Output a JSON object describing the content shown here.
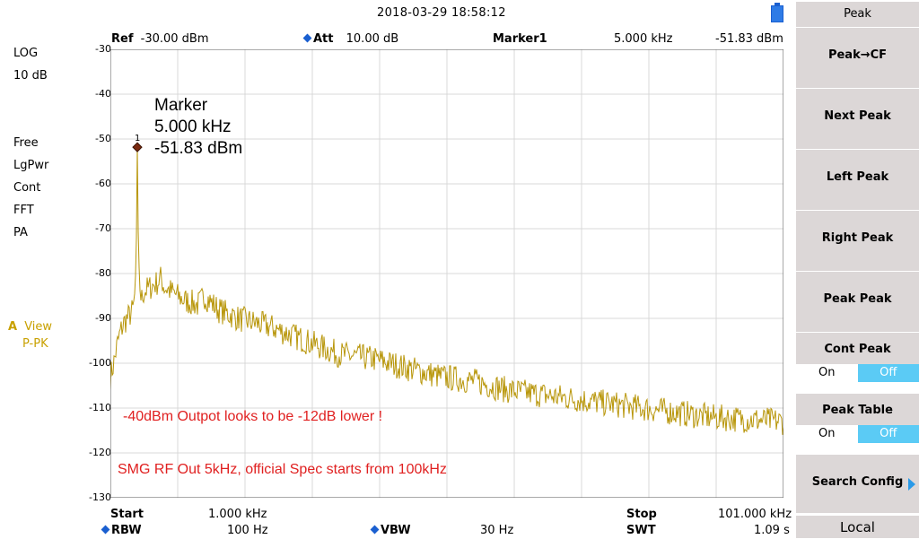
{
  "header": {
    "datetime": "2018-03-29   18:58:12"
  },
  "left_panel": {
    "scale": "LOG",
    "div": "10 dB",
    "free": "Free",
    "lgpwr": "LgPwr",
    "cont": "Cont",
    "fft": "FFT",
    "pa": "PA",
    "trace_letter": "A",
    "trace_view": "View",
    "trace_mode": "P-PK"
  },
  "top_info": {
    "ref_label": "Ref",
    "ref_value": "-30.00 dBm",
    "att_label": "Att",
    "att_value": "10.00 dB",
    "marker_label": "Marker1",
    "marker_freq": "5.000 kHz",
    "marker_level": "-51.83 dBm"
  },
  "y_ticks": [
    "-30",
    "-40",
    "-50",
    "-60",
    "-70",
    "-80",
    "-90",
    "-100",
    "-110",
    "-120",
    "-130"
  ],
  "marker_box": {
    "title": "Marker",
    "freq": "5.000 kHz",
    "level": "-51.83 dBm",
    "number": "1"
  },
  "annotations": {
    "line1": "-40dBm Outpot looks to be -12dB lower !",
    "line2": "SMG RF Out 5kHz, official Spec starts from 100kHz"
  },
  "footer": {
    "start_label": "Start",
    "start_value": "1.000 kHz",
    "stop_label": "Stop",
    "stop_value": "101.000 kHz",
    "rbw_label": "RBW",
    "rbw_value": "100 Hz",
    "vbw_label": "VBW",
    "vbw_value": "30 Hz",
    "swt_label": "SWT",
    "swt_value": "1.09 s"
  },
  "sidebar": {
    "title": "Peak",
    "peak_cf": "Peak→CF",
    "next_peak": "Next Peak",
    "left_peak": "Left Peak",
    "right_peak": "Right Peak",
    "peak_peak": "Peak Peak",
    "cont_peak": "Cont Peak",
    "cont_peak_on": "On",
    "cont_peak_off": "Off",
    "peak_table": "Peak Table",
    "peak_table_on": "On",
    "peak_table_off": "Off",
    "search_config": "Search Config",
    "local": "Local"
  },
  "colors": {
    "trace": "#b8960a",
    "grid": "#d8d8d8",
    "annotation": "#e02020",
    "toggle_active": "#5bcbf5",
    "softkey": "#dcd7d7"
  },
  "chart_data": {
    "type": "line",
    "x_unit": "kHz",
    "y_unit": "dBm",
    "xlim": [
      1.0,
      101.0
    ],
    "ylim": [
      -130,
      -30
    ],
    "marker": {
      "x": 5.0,
      "y": -51.83
    },
    "envelope": [
      [
        1.0,
        -103
      ],
      [
        1.5,
        -100
      ],
      [
        2.0,
        -96
      ],
      [
        2.5,
        -93
      ],
      [
        3.0,
        -91
      ],
      [
        3.5,
        -90
      ],
      [
        4.0,
        -89
      ],
      [
        4.4,
        -88
      ],
      [
        4.8,
        -82
      ],
      [
        5.0,
        -51.83
      ],
      [
        5.2,
        -80
      ],
      [
        5.6,
        -86
      ],
      [
        6.0,
        -84
      ],
      [
        7.0,
        -83
      ],
      [
        8.0,
        -82
      ],
      [
        8.5,
        -81
      ],
      [
        9.0,
        -83
      ],
      [
        10.0,
        -84
      ],
      [
        12.0,
        -86
      ],
      [
        14.0,
        -87
      ],
      [
        15.0,
        -85
      ],
      [
        17.0,
        -88
      ],
      [
        20.0,
        -90
      ],
      [
        25.0,
        -92
      ],
      [
        30.0,
        -95
      ],
      [
        35.0,
        -98
      ],
      [
        40.0,
        -99
      ],
      [
        45.0,
        -101
      ],
      [
        50.0,
        -103
      ],
      [
        55.0,
        -104
      ],
      [
        60.0,
        -106
      ],
      [
        65.0,
        -107
      ],
      [
        70.0,
        -108
      ],
      [
        75.0,
        -109
      ],
      [
        80.0,
        -110
      ],
      [
        85.0,
        -111
      ],
      [
        90.0,
        -112
      ],
      [
        95.0,
        -112.5
      ],
      [
        101.0,
        -113
      ]
    ]
  }
}
